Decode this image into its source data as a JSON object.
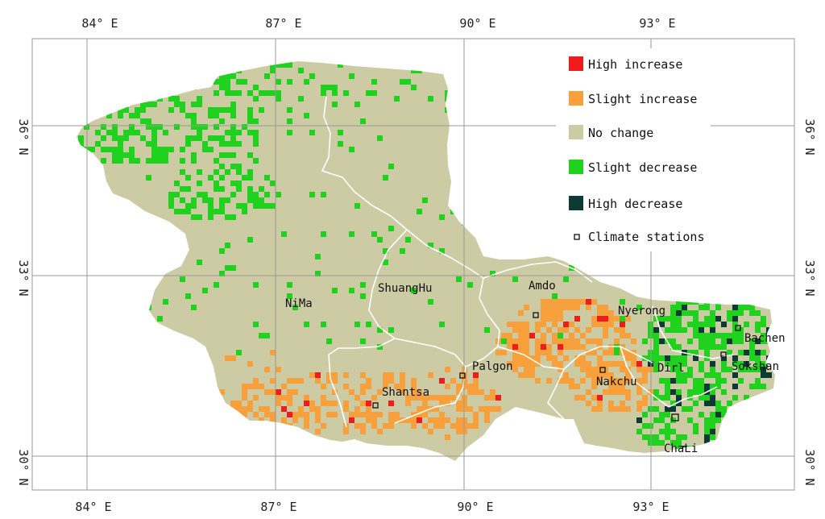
{
  "colors": {
    "high_increase": "#ee1c1c",
    "slight_increase": "#f7a03c",
    "no_change": "#cdcba4",
    "slight_decrease": "#1ed21e",
    "high_decrease": "#0e3a36",
    "grid": "#9a9a9a",
    "boundary": "#ffffff"
  },
  "axes": {
    "longitude_labels": [
      "84° E",
      "87° E",
      "90° E",
      "93° E"
    ],
    "latitude_labels": [
      "36° N",
      "33° N",
      "30° N"
    ]
  },
  "legend": {
    "items": [
      {
        "label": "High increase",
        "color_key": "high_increase"
      },
      {
        "label": "Slight increase",
        "color_key": "slight_increase"
      },
      {
        "label": "No change",
        "color_key": "no_change"
      },
      {
        "label": "Slight decrease",
        "color_key": "slight_decrease"
      },
      {
        "label": "High decrease",
        "color_key": "high_decrease"
      },
      {
        "label": "Climate stations",
        "marker": "square"
      }
    ]
  },
  "places": [
    {
      "name": "NiMa",
      "station": false
    },
    {
      "name": "ShuangHu",
      "station": false
    },
    {
      "name": "Amdo",
      "station": true
    },
    {
      "name": "Nyerong",
      "station": false
    },
    {
      "name": "Bachen",
      "station": true
    },
    {
      "name": "Palgon",
      "station": true
    },
    {
      "name": "Nakchu",
      "station": true
    },
    {
      "name": "Dirl",
      "station": false
    },
    {
      "name": "Sokshan",
      "station": true
    },
    {
      "name": "Shantsa",
      "station": true
    },
    {
      "name": "ChaLi",
      "station": true
    }
  ]
}
